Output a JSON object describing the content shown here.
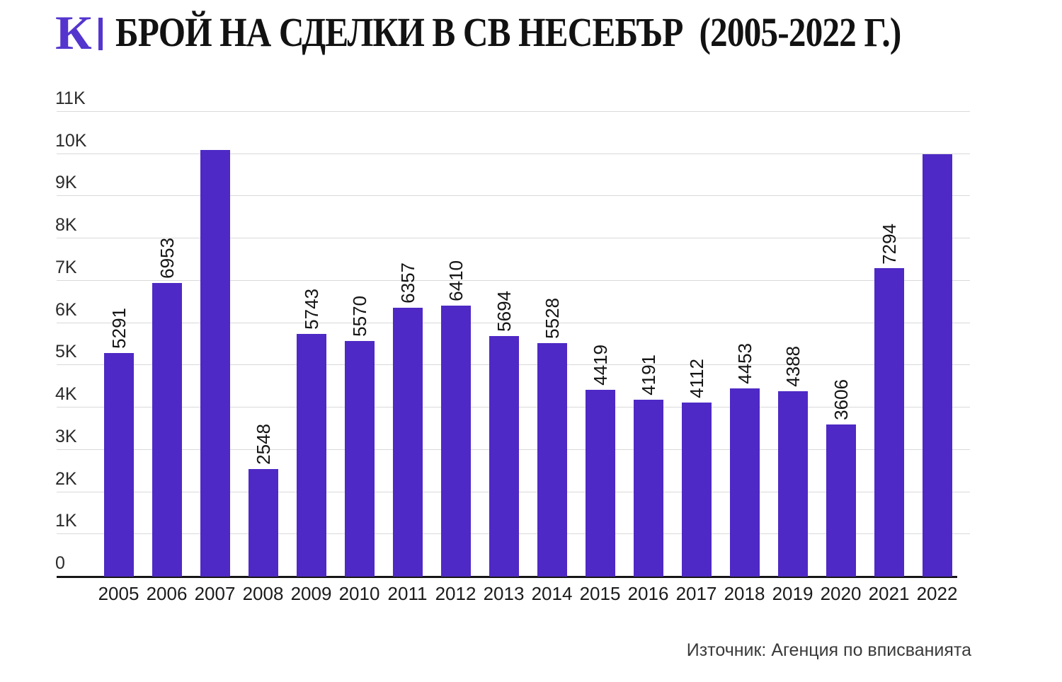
{
  "header": {
    "logo": "К",
    "title": "БРОЙ НА СДЕЛКИ В СВ НЕСЕБЪР  (2005-2022 Г.)"
  },
  "footer": {
    "source": "Източник: Агенция по вписванията"
  },
  "colors": {
    "bar": "#4E29C5",
    "logo": "#5436CE",
    "gridline": "#D9D9D9",
    "axis": "#161616"
  },
  "chart_data": {
    "type": "bar",
    "title": "БРОЙ НА СДЕЛКИ В СВ НЕСЕБЪР (2005-2022 Г.)",
    "xlabel": "",
    "ylabel": "",
    "ylim": [
      0,
      11000
    ],
    "grid": true,
    "legend": false,
    "y_ticks": [
      {
        "value": 0,
        "label": "0"
      },
      {
        "value": 1000,
        "label": "1K"
      },
      {
        "value": 2000,
        "label": "2K"
      },
      {
        "value": 3000,
        "label": "3K"
      },
      {
        "value": 4000,
        "label": "4K"
      },
      {
        "value": 5000,
        "label": "5K"
      },
      {
        "value": 6000,
        "label": "6K"
      },
      {
        "value": 7000,
        "label": "7K"
      },
      {
        "value": 8000,
        "label": "8K"
      },
      {
        "value": 9000,
        "label": "9K"
      },
      {
        "value": 10000,
        "label": "10K"
      },
      {
        "value": 11000,
        "label": "11K"
      }
    ],
    "categories": [
      "2005",
      "2006",
      "2007",
      "2008",
      "2009",
      "2010",
      "2011",
      "2012",
      "2013",
      "2014",
      "2015",
      "2016",
      "2017",
      "2018",
      "2019",
      "2020",
      "2021",
      "2022"
    ],
    "values": [
      5291,
      6953,
      10100,
      2548,
      5743,
      5570,
      6357,
      6410,
      5694,
      5528,
      4419,
      4191,
      4112,
      4453,
      4388,
      3606,
      7294,
      10000
    ],
    "bar_labels": [
      "5291",
      "6953",
      "",
      "2548",
      "5743",
      "5570",
      "6357",
      "6410",
      "5694",
      "5528",
      "4419",
      "4191",
      "4112",
      "4453",
      "4388",
      "3606",
      "7294",
      ""
    ]
  }
}
